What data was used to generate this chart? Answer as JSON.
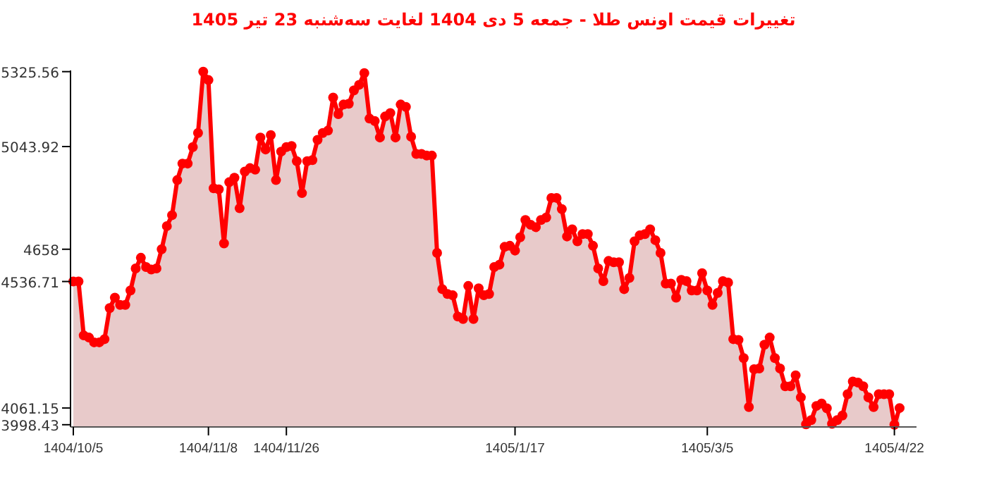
{
  "chart_data": {
    "type": "area",
    "title": "تغییرات قیمت اونس طلا - جمعه 5 دی 1404 لغایت سه‌شنبه 23 تیر 1405",
    "color": "#ff0000",
    "marker": "circle",
    "grid": false,
    "categories": [
      "1404/10/5",
      null,
      null,
      null,
      null,
      null,
      null,
      null,
      null,
      null,
      null,
      null,
      null,
      null,
      null,
      null,
      null,
      null,
      null,
      null,
      null,
      null,
      null,
      null,
      null,
      null,
      "1404/11/8",
      null,
      null,
      null,
      null,
      null,
      null,
      null,
      null,
      null,
      null,
      null,
      null,
      null,
      null,
      "1404/11/26",
      null,
      null,
      null,
      null,
      null,
      null,
      null,
      null,
      null,
      null,
      null,
      null,
      null,
      null,
      null,
      null,
      null,
      null,
      null,
      null,
      null,
      null,
      null,
      null,
      null,
      null,
      null,
      null,
      null,
      null,
      null,
      null,
      null,
      null,
      null,
      null,
      null,
      null,
      null,
      null,
      null,
      null,
      null,
      "1405/1/17",
      null,
      null,
      null,
      null,
      null,
      null,
      null,
      null,
      null,
      null,
      null,
      null,
      null,
      null,
      null,
      null,
      null,
      null,
      null,
      null,
      null,
      null,
      null,
      null,
      null,
      null,
      null,
      null,
      null,
      null,
      null,
      null,
      null,
      null,
      null,
      null,
      "1405/3/5",
      null,
      null,
      null,
      null,
      null,
      null,
      null,
      null,
      null,
      null,
      null,
      null,
      null,
      null,
      null,
      null,
      null,
      null,
      null,
      null,
      null,
      null,
      null,
      null,
      null,
      null,
      null,
      null,
      null,
      null,
      null,
      null,
      null,
      null,
      null,
      "1405/4/22",
      null
    ],
    "values": [
      4536.71,
      4537,
      4334,
      4326,
      4308,
      4308,
      4320,
      4437,
      4476,
      4449,
      4449,
      4503,
      4586,
      4626,
      4591,
      4582,
      4586,
      4658,
      4745,
      4786,
      4918,
      4980,
      4980,
      5042,
      5095,
      5325.56,
      5294,
      4887,
      4883,
      4680,
      4910,
      4927,
      4812,
      4950,
      4963,
      4957,
      5078,
      5033,
      5087,
      4918,
      5025,
      5042,
      5046,
      4989,
      4869,
      4989,
      4993,
      5069,
      5095,
      5104,
      5228,
      5166,
      5202,
      5205,
      5255,
      5276,
      5320,
      5149,
      5140,
      5078,
      5157,
      5170,
      5078,
      5202,
      5193,
      5081,
      5016,
      5016,
      5010,
      5010,
      4644,
      4508,
      4490,
      4485,
      4405,
      4396,
      4520,
      4396,
      4511,
      4485,
      4490,
      4591,
      4600,
      4667,
      4671,
      4653,
      4703,
      4768,
      4750,
      4741,
      4768,
      4777,
      4851,
      4851,
      4809,
      4706,
      4733,
      4688,
      4715,
      4715,
      4671,
      4586,
      4538,
      4614,
      4609,
      4609,
      4508,
      4550,
      4688,
      4710,
      4715,
      4733,
      4692,
      4644,
      4529,
      4529,
      4476,
      4543,
      4538,
      4503,
      4503,
      4568,
      4503,
      4449,
      4494,
      4538,
      4533,
      4320,
      4317,
      4249,
      4065,
      4207,
      4210,
      4299,
      4326,
      4249,
      4210,
      4143,
      4143,
      4184,
      4101,
      4000,
      4016,
      4069,
      4078,
      4060,
      4002,
      4016,
      4033,
      4113,
      4161,
      4157,
      4143,
      4101,
      4065,
      4113,
      4113,
      4113,
      3998.43,
      4061.15
    ],
    "ylim": [
      3990,
      5330
    ],
    "yticks": [
      3998.43,
      4061.15,
      4536.71,
      4658,
      5043.92,
      5325.56
    ]
  }
}
